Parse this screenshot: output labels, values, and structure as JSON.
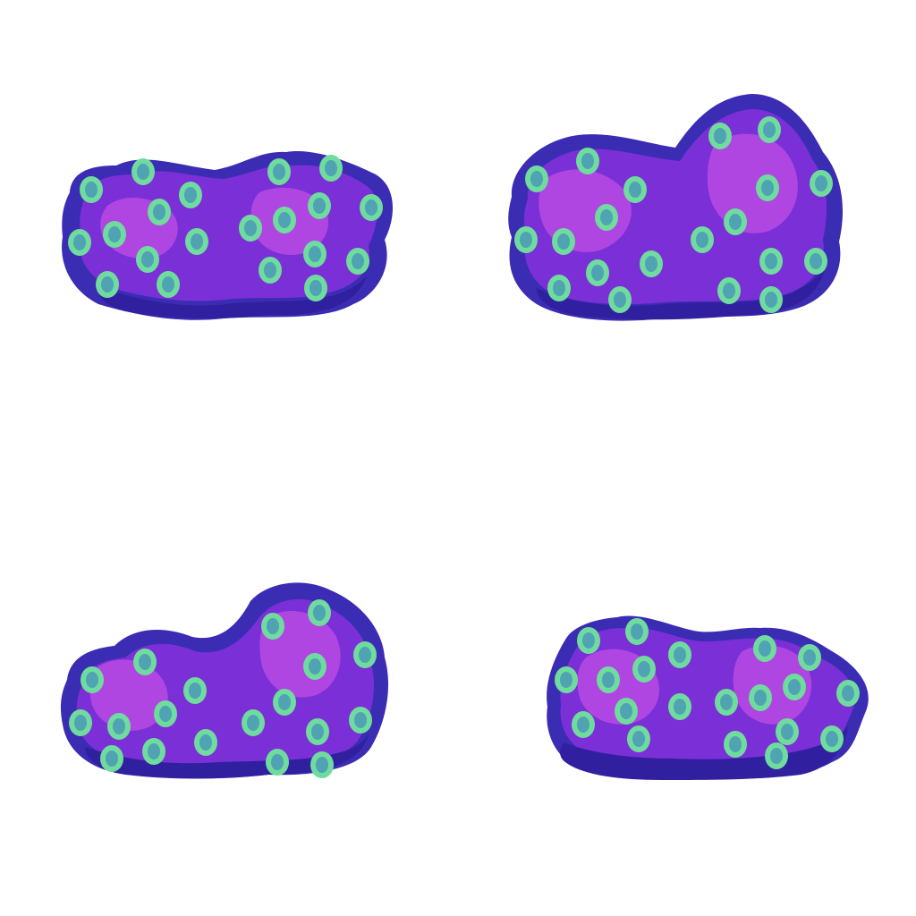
{
  "sheet": {
    "background": "#ffffff",
    "layout": "2x2 grid",
    "sprite_count": 4
  },
  "palette": {
    "outline": "#3A2DB2",
    "shadow": "#3422A0",
    "body": "#7A2ED6",
    "mid": "#9B3CE0",
    "highlight": "#C24FE6",
    "spot_fill": "#6ED9A0",
    "spot_core": "#4FA6B0",
    "spot_ring": "#5A2BC0"
  },
  "sprites": [
    {
      "name": "coral-cluster-variant-1",
      "shape": "low twin-lobed"
    },
    {
      "name": "coral-cluster-variant-2",
      "shape": "tall right lobe"
    },
    {
      "name": "coral-cluster-variant-3",
      "shape": "tall right lobe, low left"
    },
    {
      "name": "coral-cluster-variant-4",
      "shape": "flat wide"
    }
  ]
}
